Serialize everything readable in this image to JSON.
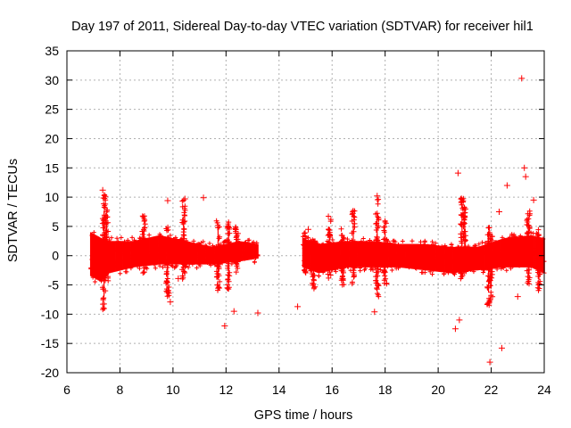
{
  "chart_data": {
    "type": "scatter",
    "title": "Day 197 of 2011, Sidereal Day-to-day VTEC variation (SDTVAR) for receiver hil1",
    "xlabel": "GPS time / hours",
    "ylabel": "SDTVAR / TECUs",
    "xlim": [
      6,
      24
    ],
    "ylim": [
      -20,
      35
    ],
    "x_ticks": [
      6,
      8,
      10,
      12,
      14,
      16,
      18,
      20,
      22,
      24
    ],
    "x_tick_labels": [
      "6",
      "8",
      "10",
      "12",
      "14",
      "16",
      "18",
      "20",
      "22",
      "24"
    ],
    "y_ticks": [
      -20,
      -15,
      -10,
      -5,
      0,
      5,
      10,
      15,
      20,
      25,
      30,
      35
    ],
    "y_tick_labels": [
      "-20",
      "-15",
      "-10",
      "-5",
      "0",
      "5",
      "10",
      "15",
      "20",
      "25",
      "30",
      "35"
    ],
    "grid": true,
    "marker": "plus",
    "series": [
      {
        "name": "SDTVAR",
        "color": "#ff0000",
        "envelope": [
          {
            "x": 6.9,
            "lo": -3.5,
            "hi": 4.0
          },
          {
            "x": 7.3,
            "lo": -4.5,
            "hi": 3.0
          },
          {
            "x": 7.6,
            "lo": -3.0,
            "hi": 2.5
          },
          {
            "x": 8.5,
            "lo": -2.0,
            "hi": 2.5
          },
          {
            "x": 9.5,
            "lo": -1.5,
            "hi": 3.5
          },
          {
            "x": 10.5,
            "lo": -1.5,
            "hi": 2.5
          },
          {
            "x": 11.5,
            "lo": -1.5,
            "hi": 1.5
          },
          {
            "x": 12.5,
            "lo": -1.0,
            "hi": 2.5
          },
          {
            "x": 13.2,
            "lo": -0.5,
            "hi": 2.0
          },
          {
            "x": 14.9,
            "lo": -2.0,
            "hi": 3.0
          },
          {
            "x": 15.5,
            "lo": -3.0,
            "hi": 2.0
          },
          {
            "x": 16.5,
            "lo": -2.0,
            "hi": 2.5
          },
          {
            "x": 17.5,
            "lo": -2.0,
            "hi": 2.5
          },
          {
            "x": 18.5,
            "lo": -2.0,
            "hi": 2.0
          },
          {
            "x": 19.5,
            "lo": -2.5,
            "hi": 2.0
          },
          {
            "x": 20.5,
            "lo": -3.0,
            "hi": 1.5
          },
          {
            "x": 21.5,
            "lo": -2.5,
            "hi": 1.5
          },
          {
            "x": 22.5,
            "lo": -2.0,
            "hi": 3.0
          },
          {
            "x": 23.5,
            "lo": -2.0,
            "hi": 3.5
          },
          {
            "x": 24.0,
            "lo": -3.0,
            "hi": 3.0
          }
        ],
        "bursts": [
          {
            "x": 7.4,
            "lo": -10,
            "hi": 11
          },
          {
            "x": 7.5,
            "lo": -5,
            "hi": 8
          },
          {
            "x": 8.9,
            "lo": -4,
            "hi": 7
          },
          {
            "x": 9.8,
            "lo": -8,
            "hi": 5
          },
          {
            "x": 10.4,
            "lo": -4,
            "hi": 9.5
          },
          {
            "x": 11.7,
            "lo": -6,
            "hi": 7
          },
          {
            "x": 12.1,
            "lo": -6,
            "hi": 6
          },
          {
            "x": 12.4,
            "lo": -3,
            "hi": 5
          },
          {
            "x": 15.0,
            "lo": -3,
            "hi": 4
          },
          {
            "x": 15.3,
            "lo": -6,
            "hi": 3
          },
          {
            "x": 15.9,
            "lo": -4,
            "hi": 7
          },
          {
            "x": 16.4,
            "lo": -5,
            "hi": 5
          },
          {
            "x": 16.8,
            "lo": -5,
            "hi": 8
          },
          {
            "x": 17.7,
            "lo": -7,
            "hi": 10
          },
          {
            "x": 18.0,
            "lo": -5,
            "hi": 6
          },
          {
            "x": 20.9,
            "lo": -4,
            "hi": 10.5
          },
          {
            "x": 21.0,
            "lo": -3,
            "hi": 9
          },
          {
            "x": 21.9,
            "lo": -9,
            "hi": 6
          },
          {
            "x": 22.0,
            "lo": -8,
            "hi": 4
          },
          {
            "x": 23.4,
            "lo": -5,
            "hi": 8
          },
          {
            "x": 23.8,
            "lo": -6,
            "hi": 5
          }
        ],
        "outliers": [
          {
            "x": 7.35,
            "y": 11.2
          },
          {
            "x": 9.8,
            "y": 9.4
          },
          {
            "x": 10.45,
            "y": 9.7
          },
          {
            "x": 11.15,
            "y": 9.9
          },
          {
            "x": 12.3,
            "y": -9.5
          },
          {
            "x": 13.2,
            "y": -9.8
          },
          {
            "x": 11.95,
            "y": -12.0
          },
          {
            "x": 14.7,
            "y": -8.7
          },
          {
            "x": 15.1,
            "y": 4.5
          },
          {
            "x": 17.6,
            "y": -9.6
          },
          {
            "x": 17.7,
            "y": 10.2
          },
          {
            "x": 20.75,
            "y": 14.1
          },
          {
            "x": 20.8,
            "y": -11.0
          },
          {
            "x": 20.65,
            "y": -12.5
          },
          {
            "x": 21.95,
            "y": -18.2
          },
          {
            "x": 22.4,
            "y": -15.8
          },
          {
            "x": 22.6,
            "y": 12.0
          },
          {
            "x": 23.15,
            "y": 30.3
          },
          {
            "x": 23.25,
            "y": 15.0
          },
          {
            "x": 23.3,
            "y": 13.5
          },
          {
            "x": 23.0,
            "y": -7.0
          },
          {
            "x": 23.6,
            "y": 9.5
          },
          {
            "x": 22.3,
            "y": 7.5
          },
          {
            "x": 9.9,
            "y": -7.9
          },
          {
            "x": 10.2,
            "y": -3.9
          }
        ]
      }
    ]
  }
}
